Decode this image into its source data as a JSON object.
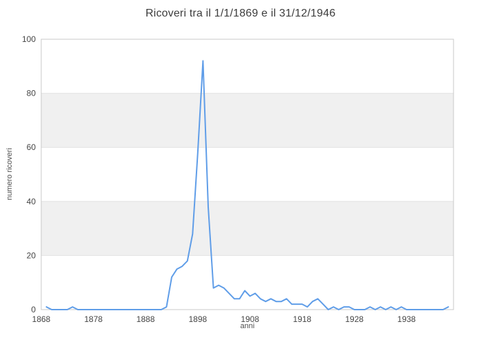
{
  "title": "Ricoveri tra il 1/1/1869 e il 31/12/1946",
  "chart_data": {
    "type": "line",
    "title": "Ricoveri tra il 1/1/1869 e il 31/12/1946",
    "xlabel": "anni",
    "ylabel": "numero ricoveri",
    "x": [
      1869,
      1870,
      1871,
      1872,
      1873,
      1874,
      1875,
      1876,
      1877,
      1878,
      1879,
      1880,
      1881,
      1882,
      1883,
      1884,
      1885,
      1886,
      1887,
      1888,
      1889,
      1890,
      1891,
      1892,
      1893,
      1894,
      1895,
      1896,
      1897,
      1898,
      1899,
      1900,
      1901,
      1902,
      1903,
      1904,
      1905,
      1906,
      1907,
      1908,
      1909,
      1910,
      1911,
      1912,
      1913,
      1914,
      1915,
      1916,
      1917,
      1918,
      1919,
      1920,
      1921,
      1922,
      1923,
      1924,
      1925,
      1926,
      1927,
      1928,
      1929,
      1930,
      1931,
      1932,
      1933,
      1934,
      1935,
      1936,
      1937,
      1938,
      1939,
      1940,
      1941,
      1942,
      1943,
      1944,
      1945,
      1946
    ],
    "series": [
      {
        "name": "numero ricoveri",
        "values": [
          1,
          0,
          0,
          0,
          0,
          1,
          0,
          0,
          0,
          0,
          0,
          0,
          0,
          0,
          0,
          0,
          0,
          0,
          0,
          0,
          0,
          0,
          0,
          1,
          12,
          15,
          16,
          18,
          28,
          58,
          92,
          38,
          8,
          9,
          8,
          6,
          4,
          4,
          7,
          5,
          6,
          4,
          3,
          4,
          3,
          3,
          4,
          2,
          2,
          2,
          1,
          3,
          4,
          2,
          0,
          1,
          0,
          1,
          1,
          0,
          0,
          0,
          1,
          0,
          1,
          0,
          1,
          0,
          1,
          0,
          0,
          0,
          0,
          0,
          0,
          0,
          0,
          1
        ]
      }
    ],
    "xlim": [
      1868,
      1947
    ],
    "ylim": [
      0,
      100
    ],
    "xticks": [
      1868,
      1878,
      1888,
      1898,
      1908,
      1918,
      1928,
      1938
    ],
    "yticks": [
      0,
      20,
      40,
      60,
      80,
      100
    ],
    "legend": "none",
    "grid": "horizontal-bands",
    "colors": {
      "line": "#5f9de8",
      "band_alt": "#f0f0f0",
      "band_base": "#ffffff",
      "gridline": "#e2e2e2",
      "border": "#c9c9c9",
      "tick_label": "#444444",
      "title": "#3c3c3c",
      "axis_title": "#4f4f4f"
    }
  }
}
